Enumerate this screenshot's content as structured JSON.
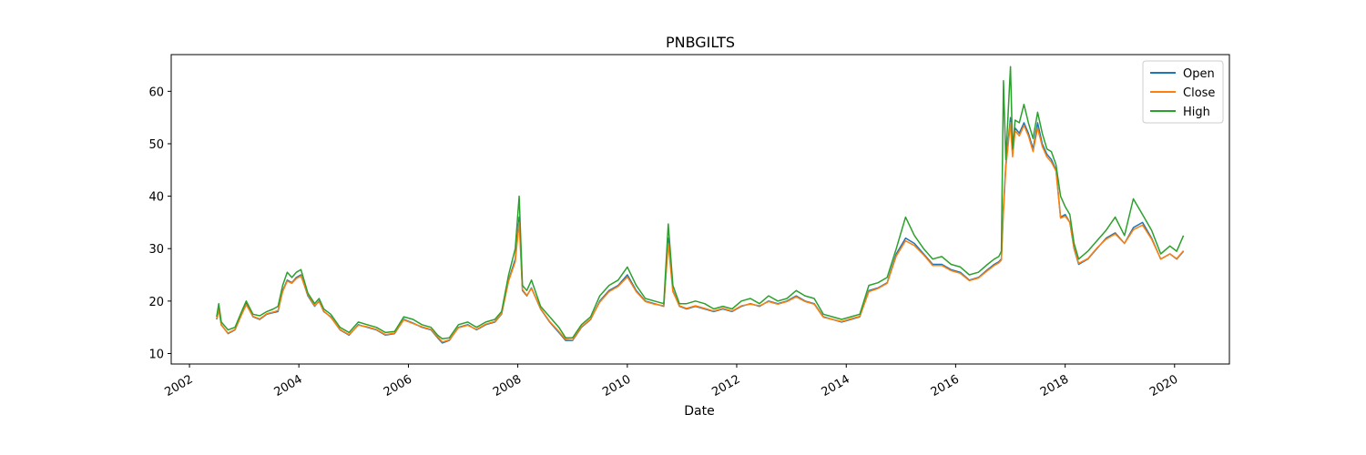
{
  "chart_data": {
    "type": "line",
    "title": "PNBGILTS",
    "xlabel": "Date",
    "ylabel": "",
    "xlim": [
      "2001-09-01",
      "2021-01-01"
    ],
    "ylim": [
      8,
      67
    ],
    "xticks": [
      "2002",
      "2004",
      "2006",
      "2008",
      "2010",
      "2012",
      "2014",
      "2016",
      "2018",
      "2020"
    ],
    "yticks": [
      10,
      20,
      30,
      40,
      50,
      60
    ],
    "grid": false,
    "legend_position": "top-right",
    "x": [
      "2002-07-01",
      "2002-07-15",
      "2002-08-01",
      "2002-09-15",
      "2002-11-01",
      "2002-12-15",
      "2003-01-15",
      "2003-03-01",
      "2003-04-15",
      "2003-06-01",
      "2003-07-15",
      "2003-08-15",
      "2003-09-15",
      "2003-10-15",
      "2003-11-15",
      "2003-12-15",
      "2004-01-15",
      "2004-03-01",
      "2004-04-15",
      "2004-05-15",
      "2004-06-15",
      "2004-08-01",
      "2004-10-01",
      "2004-12-01",
      "2005-02-01",
      "2005-04-01",
      "2005-06-01",
      "2005-08-01",
      "2005-10-01",
      "2005-12-01",
      "2006-02-01",
      "2006-04-01",
      "2006-06-01",
      "2006-07-15",
      "2006-08-15",
      "2006-10-01",
      "2006-12-01",
      "2007-02-01",
      "2007-04-01",
      "2007-06-01",
      "2007-08-01",
      "2007-09-15",
      "2007-11-01",
      "2007-12-15",
      "2008-01-10",
      "2008-02-01",
      "2008-03-01",
      "2008-04-01",
      "2008-06-01",
      "2008-08-01",
      "2008-10-01",
      "2008-11-15",
      "2009-01-01",
      "2009-03-01",
      "2009-05-01",
      "2009-07-01",
      "2009-09-01",
      "2009-11-01",
      "2010-01-01",
      "2010-03-01",
      "2010-05-01",
      "2010-07-01",
      "2010-09-01",
      "2010-10-01",
      "2010-11-01",
      "2010-12-15",
      "2011-02-01",
      "2011-04-01",
      "2011-06-01",
      "2011-08-01",
      "2011-10-01",
      "2011-12-01",
      "2012-02-01",
      "2012-04-01",
      "2012-06-01",
      "2012-08-01",
      "2012-10-01",
      "2012-12-01",
      "2013-02-01",
      "2013-04-01",
      "2013-06-01",
      "2013-08-01",
      "2013-10-01",
      "2013-12-01",
      "2014-02-01",
      "2014-04-01",
      "2014-06-01",
      "2014-08-01",
      "2014-10-01",
      "2014-12-01",
      "2015-02-01",
      "2015-04-01",
      "2015-06-01",
      "2015-08-01",
      "2015-10-01",
      "2015-12-01",
      "2016-02-01",
      "2016-04-01",
      "2016-06-01",
      "2016-08-01",
      "2016-09-15",
      "2016-10-15",
      "2016-11-01",
      "2016-11-15",
      "2016-12-01",
      "2017-01-01",
      "2017-01-15",
      "2017-02-01",
      "2017-03-01",
      "2017-04-01",
      "2017-05-01",
      "2017-06-01",
      "2017-07-01",
      "2017-08-01",
      "2017-09-01",
      "2017-10-01",
      "2017-11-01",
      "2017-12-01",
      "2018-01-01",
      "2018-02-01",
      "2018-03-01",
      "2018-04-01",
      "2018-06-01",
      "2018-08-01",
      "2018-10-01",
      "2018-12-01",
      "2019-02-01",
      "2019-04-01",
      "2019-06-01",
      "2019-08-01",
      "2019-10-01",
      "2019-12-01",
      "2020-01-15",
      "2020-03-01"
    ],
    "series": [
      {
        "name": "Open",
        "color": "#1f77b4",
        "values": [
          16.5,
          18.5,
          15.5,
          13.8,
          14.5,
          17.5,
          19.5,
          17.0,
          16.5,
          17.5,
          17.8,
          18.0,
          22.0,
          24.0,
          23.5,
          24.5,
          25.0,
          21.0,
          19.0,
          20.0,
          18.0,
          17.0,
          14.5,
          13.5,
          15.5,
          15.0,
          14.5,
          13.5,
          13.8,
          16.5,
          15.8,
          15.0,
          14.5,
          13.0,
          12.0,
          12.5,
          15.0,
          15.5,
          14.5,
          15.5,
          16.0,
          17.5,
          24.0,
          28.0,
          36.0,
          22.0,
          21.0,
          22.5,
          18.5,
          16.0,
          14.0,
          12.5,
          12.5,
          15.0,
          16.5,
          20.0,
          22.0,
          23.0,
          25.0,
          22.0,
          20.0,
          19.5,
          19.0,
          32.0,
          22.0,
          19.0,
          18.5,
          19.0,
          18.5,
          18.0,
          18.5,
          18.0,
          19.0,
          19.5,
          19.0,
          20.0,
          19.5,
          20.0,
          21.0,
          20.0,
          19.5,
          17.0,
          16.5,
          16.0,
          16.5,
          17.0,
          22.0,
          22.5,
          23.5,
          29.0,
          32.0,
          31.0,
          29.0,
          27.0,
          27.0,
          26.0,
          25.5,
          24.0,
          24.5,
          26.0,
          27.0,
          27.5,
          28.0,
          38.0,
          46.0,
          55.0,
          48.0,
          53.0,
          52.0,
          54.0,
          52.0,
          49.0,
          54.0,
          50.0,
          48.0,
          47.0,
          45.0,
          36.0,
          36.5,
          35.0,
          30.0,
          27.0,
          28.0,
          30.0,
          32.0,
          33.0,
          31.0,
          34.0,
          35.0,
          32.0,
          28.0,
          29.0,
          28.0,
          29.5
        ]
      },
      {
        "name": "Close",
        "color": "#ff7f0e",
        "values": [
          16.6,
          18.3,
          15.4,
          13.9,
          14.6,
          17.4,
          19.3,
          17.1,
          16.6,
          17.6,
          17.9,
          18.2,
          21.8,
          23.8,
          23.4,
          24.3,
          24.8,
          21.2,
          19.1,
          19.9,
          18.1,
          16.9,
          14.6,
          13.6,
          15.4,
          15.1,
          14.6,
          13.6,
          13.9,
          16.4,
          15.7,
          15.1,
          14.6,
          13.2,
          12.2,
          12.6,
          14.9,
          15.4,
          14.6,
          15.6,
          16.1,
          17.6,
          23.8,
          27.5,
          35.0,
          22.2,
          21.1,
          22.4,
          18.6,
          16.1,
          14.2,
          12.7,
          12.6,
          15.1,
          16.6,
          19.8,
          21.8,
          22.8,
          24.6,
          21.8,
          19.9,
          19.4,
          19.1,
          31.0,
          21.8,
          19.1,
          18.6,
          19.1,
          18.6,
          18.1,
          18.6,
          18.1,
          19.1,
          19.4,
          19.1,
          19.9,
          19.4,
          19.9,
          20.8,
          19.9,
          19.4,
          16.9,
          16.5,
          16.1,
          16.6,
          17.1,
          21.8,
          22.4,
          23.4,
          28.6,
          31.5,
          30.6,
          28.8,
          26.8,
          26.8,
          25.8,
          25.3,
          23.9,
          24.4,
          25.8,
          26.8,
          27.3,
          27.8,
          37.0,
          45.5,
          54.0,
          47.5,
          52.5,
          51.5,
          53.5,
          51.5,
          48.5,
          53.0,
          49.5,
          47.5,
          46.5,
          44.8,
          35.8,
          36.2,
          35.0,
          30.2,
          27.2,
          28.1,
          30.1,
          31.8,
          32.8,
          31.0,
          33.6,
          34.5,
          31.8,
          28.0,
          29.0,
          28.1,
          29.6
        ]
      },
      {
        "name": "High",
        "color": "#2ca02c",
        "values": [
          17.0,
          19.5,
          16.0,
          14.5,
          15.0,
          18.0,
          20.0,
          17.5,
          17.2,
          18.0,
          18.5,
          19.0,
          23.0,
          25.5,
          24.5,
          25.5,
          26.0,
          21.5,
          19.5,
          20.5,
          18.5,
          17.5,
          15.0,
          14.0,
          16.0,
          15.5,
          15.0,
          14.0,
          14.2,
          17.0,
          16.5,
          15.5,
          15.0,
          13.5,
          12.8,
          13.0,
          15.5,
          16.0,
          15.0,
          16.0,
          16.5,
          18.0,
          25.0,
          30.0,
          40.0,
          23.0,
          22.0,
          24.0,
          19.0,
          17.0,
          15.0,
          13.0,
          13.0,
          15.5,
          17.0,
          21.0,
          23.0,
          24.0,
          26.5,
          23.0,
          20.5,
          20.0,
          19.5,
          34.7,
          23.0,
          19.5,
          19.5,
          20.0,
          19.5,
          18.5,
          19.0,
          18.5,
          20.0,
          20.5,
          19.5,
          21.0,
          20.0,
          20.5,
          22.0,
          21.0,
          20.5,
          17.5,
          17.0,
          16.5,
          17.0,
          17.5,
          23.0,
          23.5,
          24.5,
          30.0,
          36.0,
          32.5,
          30.0,
          28.0,
          28.5,
          27.0,
          26.5,
          25.0,
          25.5,
          27.0,
          28.0,
          28.5,
          29.5,
          62.0,
          47.0,
          64.7,
          49.0,
          54.5,
          54.0,
          57.5,
          54.0,
          51.0,
          56.0,
          52.0,
          49.0,
          48.5,
          46.0,
          40.0,
          38.0,
          36.5,
          31.0,
          28.0,
          29.5,
          31.5,
          33.5,
          36.0,
          32.5,
          39.5,
          36.5,
          33.5,
          29.0,
          30.5,
          29.5,
          32.5
        ]
      }
    ]
  }
}
